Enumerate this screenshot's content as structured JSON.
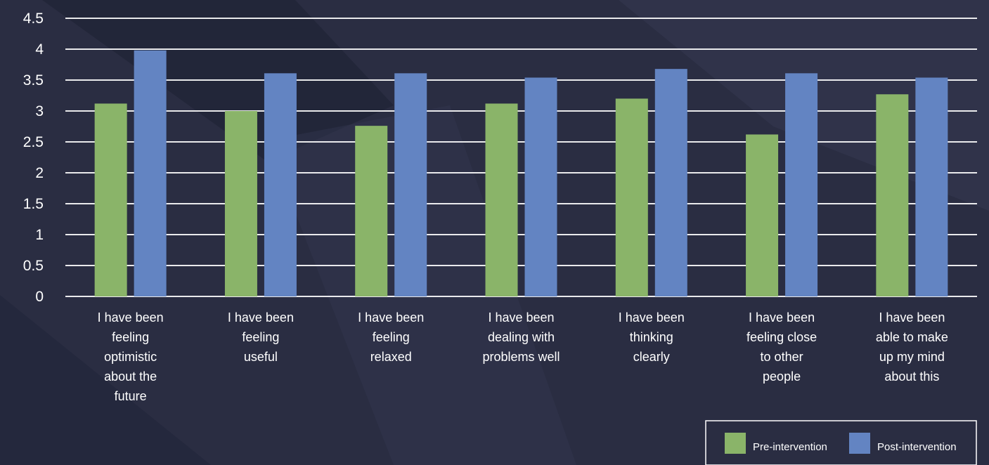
{
  "colors": {
    "background": "#2a2d42",
    "pre": "#8ab469",
    "post": "#6384c2",
    "grid": "#ffffff",
    "text": "#ffffff"
  },
  "chart_data": {
    "type": "bar",
    "title": "",
    "xlabel": "",
    "ylabel": "",
    "ylim": [
      0,
      4.5
    ],
    "yticks": [
      "0",
      "0.5",
      "1",
      "1.5",
      "2",
      "2.5",
      "3",
      "3.5",
      "4",
      "4.5"
    ],
    "grid": true,
    "legend_position": "bottom-right",
    "categories": [
      [
        "I have been",
        "feeling",
        "optimistic",
        "about the",
        "future"
      ],
      [
        "I have been",
        "feeling",
        "useful"
      ],
      [
        "I have been",
        "feeling",
        "relaxed"
      ],
      [
        "I have been",
        "dealing with",
        "problems well"
      ],
      [
        "I have been",
        "thinking",
        "clearly"
      ],
      [
        "I have been",
        "feeling close",
        "to other",
        "people"
      ],
      [
        "I have been",
        "able to make",
        "up my mind",
        "about this"
      ]
    ],
    "series": [
      {
        "name": "Pre-intervention",
        "color": "#8ab469",
        "values": [
          3.12,
          3.0,
          2.76,
          3.12,
          3.2,
          2.62,
          3.27
        ]
      },
      {
        "name": "Post-intervention",
        "color": "#6384c2",
        "values": [
          3.98,
          3.61,
          3.61,
          3.54,
          3.68,
          3.61,
          3.54
        ]
      }
    ]
  }
}
